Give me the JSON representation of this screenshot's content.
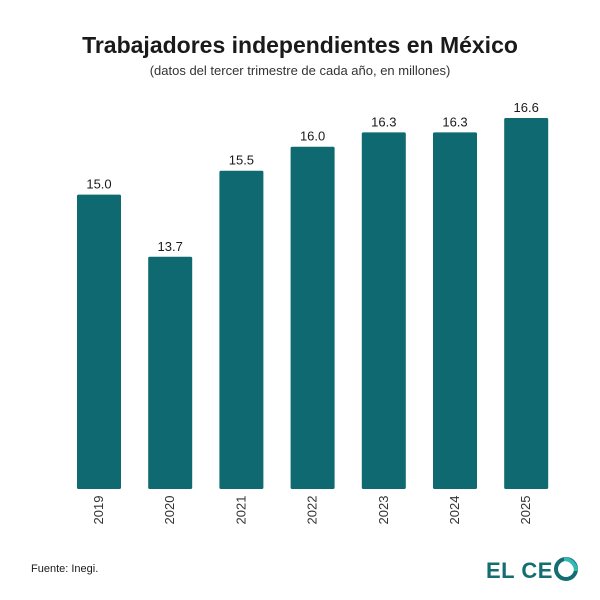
{
  "chart_data": {
    "type": "bar",
    "title": "Trabajadores independientes en México",
    "subtitle": "(datos del tercer trimestre de cada año, en millones)",
    "categories": [
      "2019",
      "2020",
      "2021",
      "2022",
      "2023",
      "2024",
      "2025"
    ],
    "values": [
      15.0,
      13.7,
      15.5,
      16.0,
      16.3,
      16.3,
      16.6
    ],
    "value_labels": [
      "15.0",
      "13.7",
      "15.5",
      "16.0",
      "16.3",
      "16.3",
      "16.6"
    ],
    "xlabel": "",
    "ylabel": "",
    "ylim": [
      8.85,
      16.6
    ],
    "grid": false,
    "legend": "none",
    "bar_color": "#0e6a70"
  },
  "footer": {
    "source": "Fuente: Inegi.",
    "logo_text": "EL CEO"
  }
}
